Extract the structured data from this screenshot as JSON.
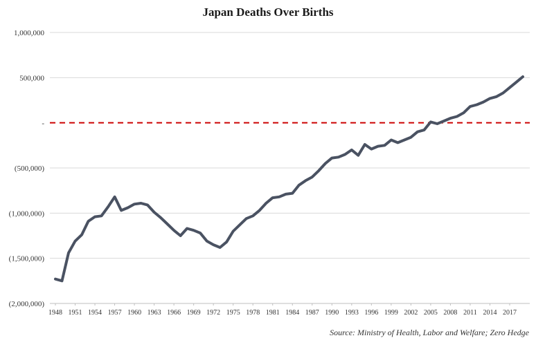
{
  "title": "Japan Deaths Over Births",
  "source": "Source: Ministry of Health, Labor and Welfare; Zero Hedge",
  "chart_data": {
    "type": "line",
    "title": "Japan Deaths Over Births",
    "xlabel": "",
    "ylabel": "",
    "ylim": [
      -2000000,
      1000000
    ],
    "grid": true,
    "legend": "none",
    "y_ticks": [
      1000000,
      500000,
      0,
      -500000,
      -1000000,
      -1500000,
      -2000000
    ],
    "y_tick_labels": [
      "1,000,000",
      "500,000",
      "-",
      "(500,000)",
      "(1,000,000)",
      "(1,500,000)",
      "(2,000,000)"
    ],
    "x_tick_labels": [
      "1948",
      "1951",
      "1954",
      "1957",
      "1960",
      "1963",
      "1966",
      "1969",
      "1972",
      "1975",
      "1978",
      "1981",
      "1984",
      "1987",
      "1990",
      "1993",
      "1996",
      "1999",
      "2002",
      "2005",
      "2008",
      "2011",
      "2014",
      "2017"
    ],
    "reference_line": {
      "y": 0,
      "style": "dashed",
      "color": "#cc0000"
    },
    "series": [
      {
        "color": "#4a5262",
        "x": [
          1948,
          1949,
          1950,
          1951,
          1952,
          1953,
          1954,
          1955,
          1956,
          1957,
          1958,
          1959,
          1960,
          1961,
          1962,
          1963,
          1964,
          1965,
          1966,
          1967,
          1968,
          1969,
          1970,
          1971,
          1972,
          1973,
          1974,
          1975,
          1976,
          1977,
          1978,
          1979,
          1980,
          1981,
          1982,
          1983,
          1984,
          1985,
          1986,
          1987,
          1988,
          1989,
          1990,
          1991,
          1992,
          1993,
          1994,
          1995,
          1996,
          1997,
          1998,
          1999,
          2000,
          2001,
          2002,
          2003,
          2004,
          2005,
          2006,
          2007,
          2008,
          2009,
          2010,
          2011,
          2012,
          2013,
          2014,
          2015,
          2016,
          2017,
          2018,
          2019
        ],
        "values": [
          -1730000,
          -1750000,
          -1440000,
          -1310000,
          -1240000,
          -1090000,
          -1040000,
          -1030000,
          -930000,
          -820000,
          -970000,
          -940000,
          -900000,
          -890000,
          -910000,
          -990000,
          -1050000,
          -1120000,
          -1190000,
          -1250000,
          -1170000,
          -1190000,
          -1220000,
          -1310000,
          -1350000,
          -1380000,
          -1320000,
          -1200000,
          -1130000,
          -1060000,
          -1030000,
          -970000,
          -890000,
          -830000,
          -820000,
          -790000,
          -780000,
          -690000,
          -640000,
          -600000,
          -530000,
          -450000,
          -390000,
          -380000,
          -350000,
          -300000,
          -360000,
          -240000,
          -290000,
          -260000,
          -250000,
          -190000,
          -220000,
          -190000,
          -160000,
          -100000,
          -80000,
          10000,
          -10000,
          20000,
          50000,
          70000,
          110000,
          180000,
          200000,
          230000,
          270000,
          290000,
          330000,
          390000,
          450000,
          510000
        ]
      }
    ]
  }
}
